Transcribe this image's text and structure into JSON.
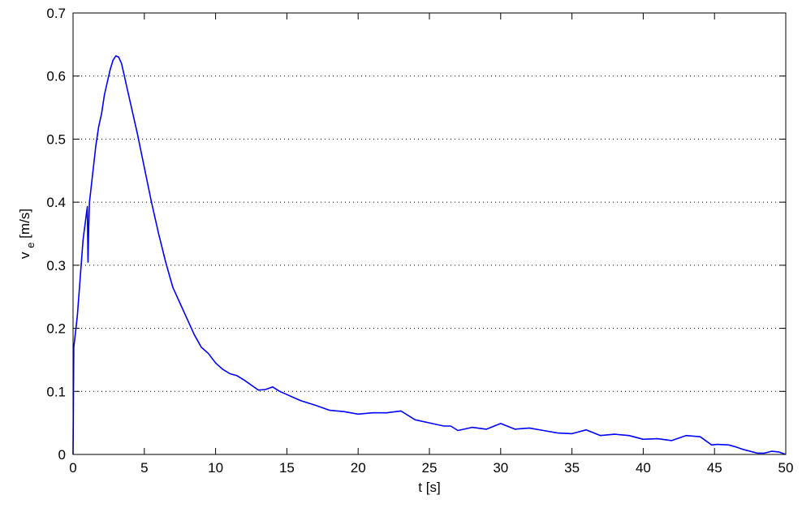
{
  "chart_data": {
    "type": "line",
    "title": "",
    "xlabel": "t [s]",
    "ylabel_main": "v",
    "ylabel_sub": "e",
    "ylabel_unit": " [m/s]",
    "xlim": [
      0,
      50
    ],
    "ylim": [
      0,
      0.7
    ],
    "xticks": [
      0,
      5,
      10,
      15,
      20,
      25,
      30,
      35,
      40,
      45,
      50
    ],
    "yticks": [
      0,
      0.1,
      0.2,
      0.3,
      0.4,
      0.5,
      0.6,
      0.7
    ],
    "grid": "horizontal-dotted",
    "series": [
      {
        "color": "#0000ff",
        "x": [
          0,
          0.05,
          0.1,
          0.3,
          0.5,
          0.7,
          0.9,
          1.0,
          1.05,
          1.1,
          1.15,
          1.2,
          1.4,
          1.6,
          1.8,
          2.0,
          2.2,
          2.4,
          2.6,
          2.8,
          3.0,
          3.2,
          3.4,
          3.6,
          3.8,
          4.0,
          4.5,
          5.0,
          5.5,
          6.0,
          6.5,
          7.0,
          7.5,
          8.0,
          8.5,
          9.0,
          9.5,
          10.0,
          10.5,
          11.0,
          11.5,
          12.0,
          12.5,
          13.0,
          13.5,
          14.0,
          14.5,
          15.0,
          15.5,
          16.0,
          17.0,
          18.0,
          19.0,
          20.0,
          21.0,
          22.0,
          23.0,
          24.0,
          25.0,
          26.0,
          26.5,
          27.0,
          28.0,
          29.0,
          30.0,
          31.0,
          32.0,
          33.0,
          34.0,
          35.0,
          36.0,
          37.0,
          38.0,
          39.0,
          40.0,
          41.0,
          42.0,
          43.0,
          44.0,
          44.8,
          45.2,
          46.0,
          46.5,
          47.0,
          48.0,
          48.5,
          49.0,
          49.5,
          50.0
        ],
        "y": [
          0,
          0.17,
          0.18,
          0.22,
          0.28,
          0.34,
          0.375,
          0.393,
          0.305,
          0.36,
          0.4,
          0.41,
          0.45,
          0.49,
          0.52,
          0.54,
          0.57,
          0.59,
          0.61,
          0.625,
          0.632,
          0.63,
          0.62,
          0.6,
          0.58,
          0.56,
          0.51,
          0.455,
          0.4,
          0.35,
          0.305,
          0.265,
          0.24,
          0.215,
          0.19,
          0.17,
          0.16,
          0.145,
          0.135,
          0.128,
          0.125,
          0.118,
          0.11,
          0.102,
          0.103,
          0.107,
          0.1,
          0.095,
          0.09,
          0.085,
          0.078,
          0.07,
          0.068,
          0.064,
          0.066,
          0.066,
          0.069,
          0.055,
          0.05,
          0.045,
          0.045,
          0.038,
          0.043,
          0.04,
          0.049,
          0.04,
          0.042,
          0.038,
          0.034,
          0.033,
          0.039,
          0.03,
          0.032,
          0.03,
          0.024,
          0.025,
          0.022,
          0.03,
          0.028,
          0.015,
          0.016,
          0.015,
          0.012,
          0.008,
          0.002,
          0.002,
          0.005,
          0.004,
          0.0
        ]
      }
    ]
  }
}
